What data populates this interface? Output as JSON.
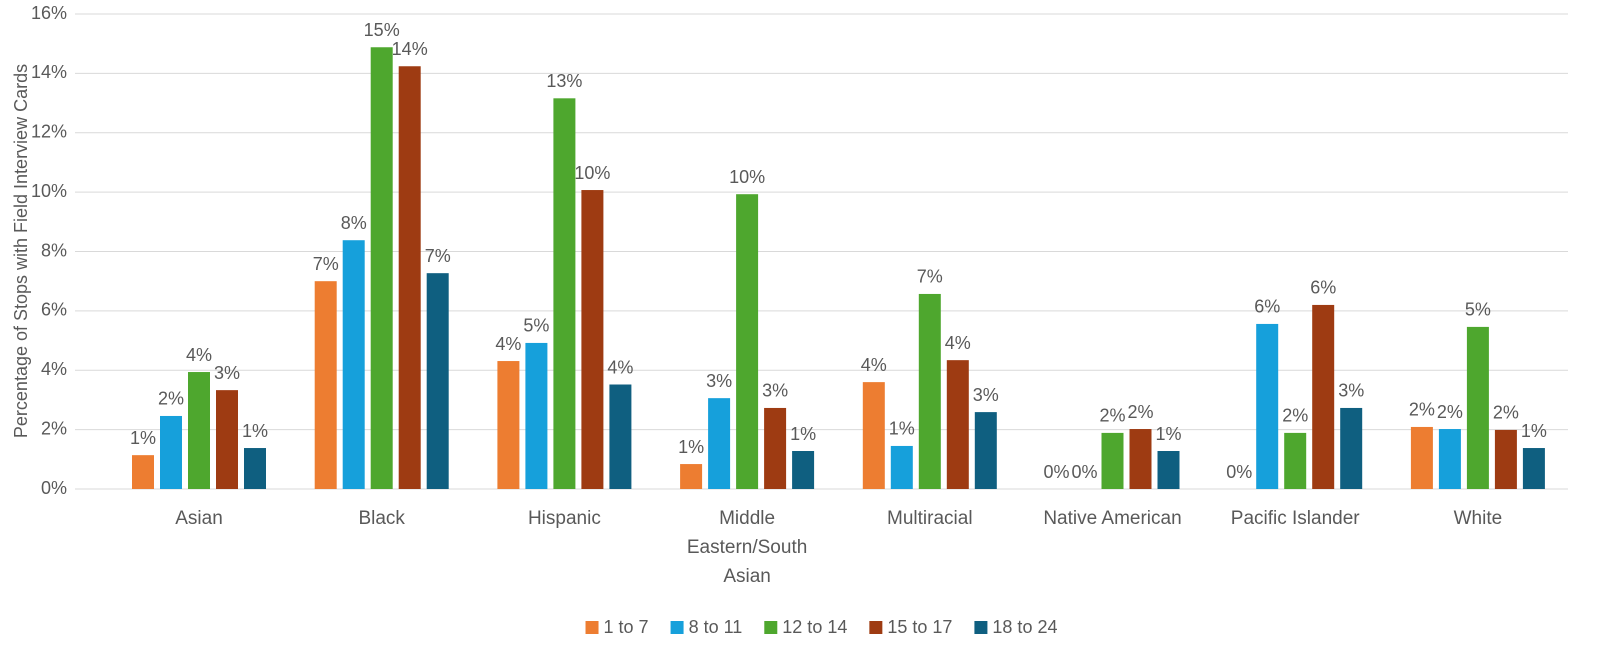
{
  "chart_data": {
    "type": "bar",
    "y_label": "Percentage of Stops with Field Interview Cards",
    "categories": [
      "Asian",
      "Black",
      "Hispanic",
      "Middle Eastern/South Asian",
      "Multiracial",
      "Native American",
      "Pacific Islander",
      "White"
    ],
    "series": [
      {
        "name": "1 to 7",
        "color": "#ed7d31",
        "values": [
          1.14,
          7.0,
          4.31,
          0.84,
          3.6,
          0,
          0,
          2.09
        ],
        "value_labels": [
          "1%",
          "7%",
          "4%",
          "1%",
          "4%",
          "0%",
          "0%",
          "2%"
        ]
      },
      {
        "name": "8 to 11",
        "color": "#16a0db",
        "values": [
          2.46,
          8.38,
          4.92,
          3.06,
          1.45,
          0,
          5.56,
          2.02
        ],
        "value_labels": [
          "2%",
          "8%",
          "5%",
          "3%",
          "1%",
          "0%",
          "6%",
          "2%"
        ]
      },
      {
        "name": "12 to 14",
        "color": "#4ea72e",
        "values": [
          3.94,
          14.88,
          13.16,
          9.93,
          6.57,
          1.89,
          1.89,
          5.46
        ],
        "value_labels": [
          "4%",
          "15%",
          "13%",
          "10%",
          "7%",
          "2%",
          "2%",
          "5%"
        ]
      },
      {
        "name": "15 to 17",
        "color": "#9e3b12",
        "values": [
          3.33,
          14.24,
          10.07,
          2.73,
          4.34,
          2.02,
          6.2,
          1.99
        ],
        "value_labels": [
          "3%",
          "14%",
          "10%",
          "3%",
          "4%",
          "2%",
          "6%",
          "2%"
        ]
      },
      {
        "name": "18 to 24",
        "color": "#0f5f80",
        "values": [
          1.38,
          7.27,
          3.52,
          1.28,
          2.59,
          1.28,
          2.73,
          1.38
        ],
        "value_labels": [
          "1%",
          "7%",
          "4%",
          "1%",
          "3%",
          "1%",
          "3%",
          "1%"
        ]
      }
    ],
    "ylim": [
      0,
      16
    ],
    "yticks": [
      {
        "value": 0,
        "label": "0%"
      },
      {
        "value": 2,
        "label": "2%"
      },
      {
        "value": 4,
        "label": "4%"
      },
      {
        "value": 6,
        "label": "6%"
      },
      {
        "value": 8,
        "label": "8%"
      },
      {
        "value": 10,
        "label": "10%"
      },
      {
        "value": 12,
        "label": "12%"
      },
      {
        "value": 14,
        "label": "14%"
      },
      {
        "value": 16,
        "label": "16%"
      }
    ],
    "grid": true,
    "legend": "bottom"
  }
}
